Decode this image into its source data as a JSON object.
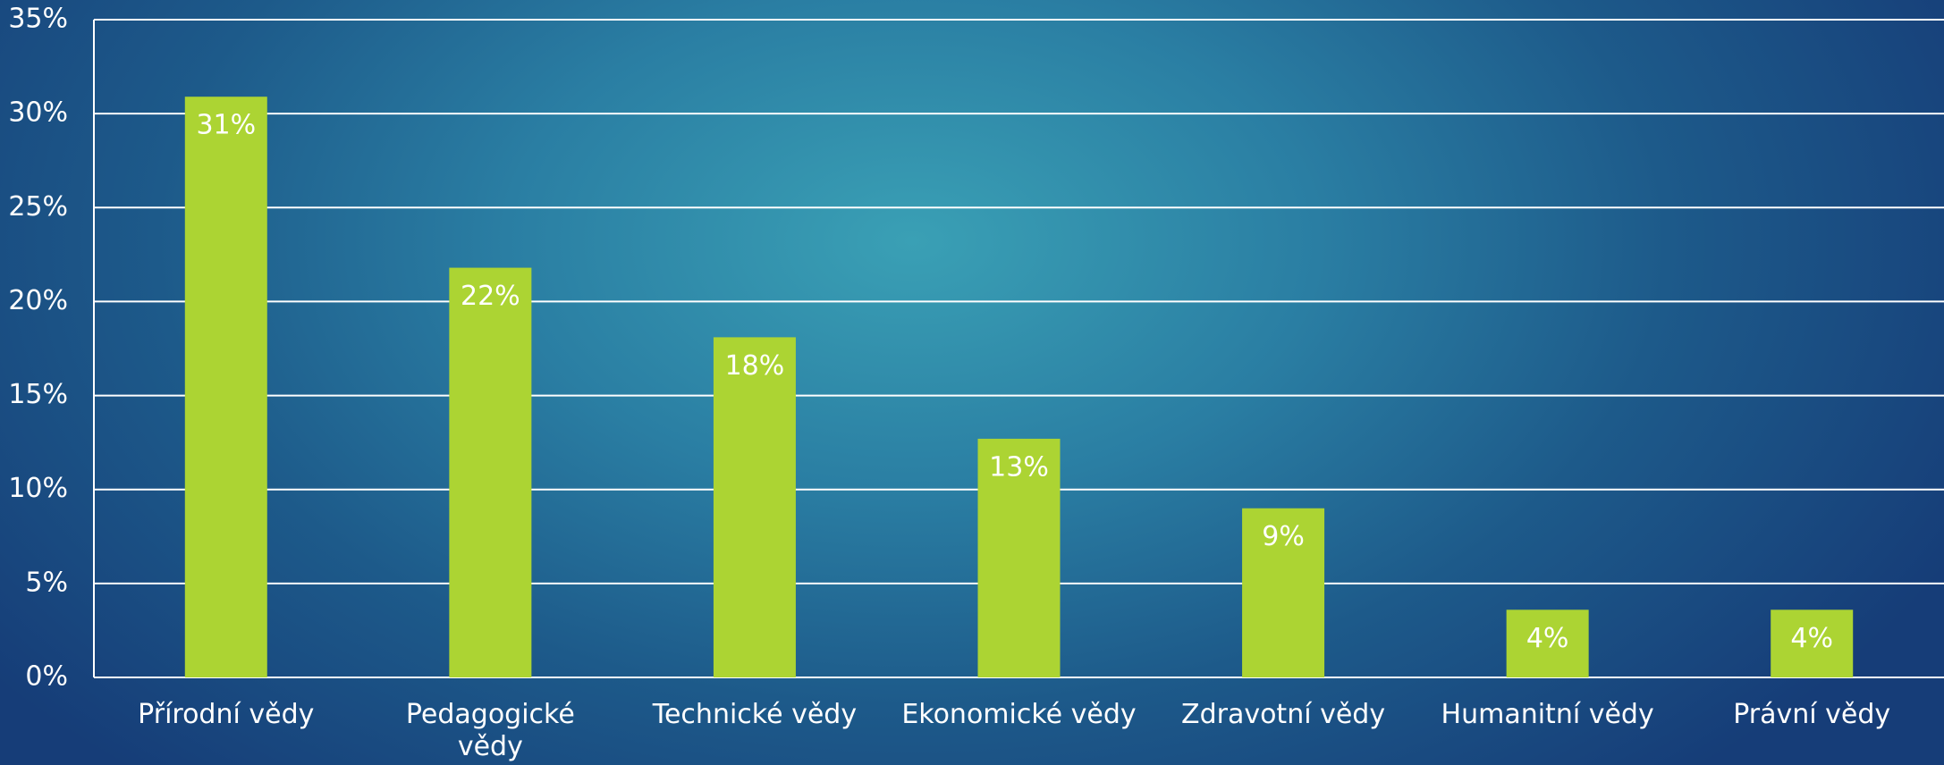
{
  "chart_data": {
    "type": "bar",
    "categories": [
      "Přírodní vědy",
      "Pedagogické\nvědy",
      "Technické vědy",
      "Ekonomické vědy",
      "Zdravotní vědy",
      "Humanitní vědy",
      "Právní vědy"
    ],
    "values": [
      30.9,
      21.8,
      18.1,
      12.7,
      9.0,
      3.6,
      3.6
    ],
    "value_labels": [
      "31%",
      "22%",
      "18%",
      "13%",
      "9%",
      "4%",
      "4%"
    ],
    "color": "#acd433",
    "ylim": [
      0,
      35
    ],
    "yticks": [
      {
        "value": 0,
        "label": "0%"
      },
      {
        "value": 5,
        "label": "5%"
      },
      {
        "value": 10,
        "label": "10%"
      },
      {
        "value": 15,
        "label": "15%"
      },
      {
        "value": 20,
        "label": "20%"
      },
      {
        "value": 25,
        "label": "25%"
      },
      {
        "value": 30,
        "label": "30%"
      },
      {
        "value": 35,
        "label": "35%"
      }
    ],
    "grid": true
  }
}
